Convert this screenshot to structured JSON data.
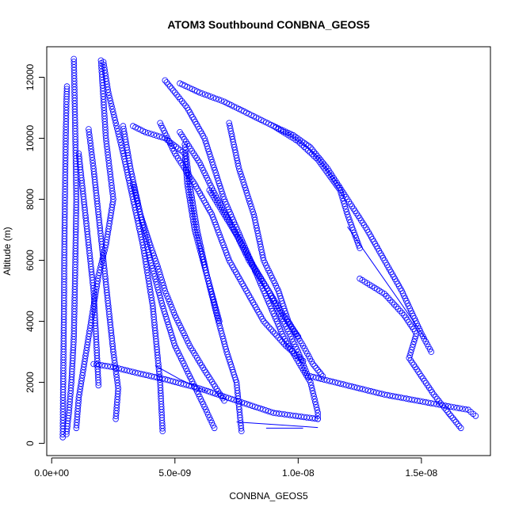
{
  "chart_data": {
    "type": "scatter",
    "title": "ATOM3 Southbound CONBNA_GEOS5",
    "xlabel": "CONBNA_GEOS5",
    "ylabel": "Altitude (m)",
    "xlim": [
      -2e-10,
      1.78e-08
    ],
    "ylim": [
      -400,
      13000
    ],
    "x_ticks": [
      0,
      5e-09,
      1e-08,
      1.5e-08
    ],
    "x_tick_labels": [
      "0.0e+00",
      "5.0e-09",
      "1.0e-08",
      "1.5e-08"
    ],
    "y_ticks": [
      0,
      2000,
      4000,
      6000,
      8000,
      10000,
      12000
    ],
    "y_tick_labels": [
      "0",
      "2000",
      "4000",
      "6000",
      "8000",
      "10000",
      "12000"
    ],
    "grid": false,
    "marker": "open-circle",
    "series_color": "#0000ff",
    "series": [
      {
        "x": [
          4.5e-10,
          4.6e-10,
          4.8e-10,
          5e-10,
          5.1e-10,
          5.3e-10,
          5.5e-10,
          5.7e-10,
          6e-10,
          6.2e-10
        ],
        "y": [
          200,
          1500,
          3000,
          4500,
          6000,
          7500,
          8800,
          10000,
          11200,
          11700
        ]
      },
      {
        "x": [
          6e-10,
          7e-10,
          8e-10,
          9e-10,
          9.5e-10,
          1e-09,
          9.5e-10,
          9e-10
        ],
        "y": [
          300,
          1000,
          2000,
          3500,
          5500,
          8000,
          10500,
          12600
        ]
      },
      {
        "x": [
          1e-09,
          1.1e-09,
          1.3e-09,
          1.5e-09,
          1.7e-09,
          1.9e-09,
          2.2e-09,
          2.5e-09,
          2.2e-09,
          2e-09
        ],
        "y": [
          500,
          1500,
          2500,
          3500,
          4500,
          5500,
          6500,
          8000,
          10000,
          12550
        ]
      },
      {
        "x": [
          2.1e-09,
          2.3e-09,
          2.6e-09,
          2.9e-09,
          3.3e-09,
          3.7e-09,
          4.1e-09,
          4.4e-09,
          4.5e-09
        ],
        "y": [
          12500,
          11500,
          10500,
          9500,
          8000,
          6500,
          4500,
          2000,
          400
        ]
      },
      {
        "x": [
          4.6e-09,
          5e-09,
          5.5e-09,
          6.2e-09,
          7e-09,
          7.8e-09,
          8.6e-09,
          9.4e-09,
          1.05e-08,
          1.08e-08,
          1.08e-08
        ],
        "y": [
          11900,
          11500,
          11000,
          10000,
          8000,
          6500,
          5000,
          3500,
          2000,
          1000,
          800
        ]
      },
      {
        "x": [
          5.2e-09,
          6e-09,
          7e-09,
          8e-09,
          9e-09,
          1e-08,
          1.08e-08,
          1.17e-08,
          1.2e-08,
          1.25e-08
        ],
        "y": [
          11800,
          11500,
          11200,
          10800,
          10400,
          9900,
          9300,
          8300,
          7500,
          6400
        ]
      },
      {
        "x": [
          4.4e-09,
          5e-09,
          5.8e-09,
          6.5e-09,
          7.2e-09,
          7.9e-09,
          8.6e-09,
          9.5e-09,
          1.02e-08
        ],
        "y": [
          10500,
          9500,
          8500,
          7500,
          6000,
          5000,
          4000,
          3200,
          2700
        ]
      },
      {
        "x": [
          7.2e-09,
          7.6e-09,
          8.2e-09,
          8.6e-09,
          9.2e-09,
          9.6e-09,
          1.02e-08,
          1.06e-08,
          1.1e-08
        ],
        "y": [
          10500,
          9000,
          7500,
          6000,
          5000,
          4000,
          3200,
          2600,
          2200
        ]
      },
      {
        "x": [
          5.2e-09,
          6e-09,
          6.6e-09,
          7.4e-09,
          8e-09,
          8.8e-09,
          9.4e-09,
          1e-08
        ],
        "y": [
          10200,
          9200,
          8200,
          7000,
          6000,
          5000,
          4200,
          3500
        ]
      },
      {
        "x": [
          9e-09,
          9.8e-09,
          1.05e-08,
          1.12e-08,
          1.2e-08,
          1.28e-08,
          1.35e-08,
          1.42e-08,
          1.5e-08,
          1.54e-08
        ],
        "y": [
          10400,
          10100,
          9700,
          9000,
          8000,
          7000,
          6000,
          5000,
          3600,
          3000
        ]
      },
      {
        "x": [
          1.25e-08,
          1.35e-08,
          1.43e-08,
          1.48e-08,
          1.45e-08,
          1.5e-08,
          1.55e-08,
          1.6e-08,
          1.64e-08,
          1.66e-08
        ],
        "y": [
          5400,
          4900,
          4200,
          3600,
          2800,
          2200,
          1600,
          1100,
          700,
          500
        ]
      },
      {
        "x": [
          1.7e-09,
          2.5e-09,
          3.5e-09,
          4.6e-09,
          6e-09,
          7.5e-09,
          9e-09,
          1.08e-08
        ],
        "y": [
          2600,
          2500,
          2300,
          2100,
          1800,
          1400,
          1000,
          800
        ]
      },
      {
        "x": [
          1.05e-08,
          1.15e-08,
          1.25e-08,
          1.35e-08,
          1.45e-08,
          1.55e-08,
          1.62e-08,
          1.69e-08,
          1.72e-08
        ],
        "y": [
          2200,
          2000,
          1800,
          1600,
          1450,
          1300,
          1200,
          1100,
          900
        ]
      },
      {
        "x": [
          2.9e-09,
          3.2e-09,
          3.6e-09,
          4e-09,
          4.5e-09,
          5e-09,
          5.6e-09,
          6.2e-09,
          6.6e-09
        ],
        "y": [
          10400,
          9000,
          7500,
          6000,
          4500,
          3200,
          2200,
          1200,
          500
        ]
      },
      {
        "x": [
          1.5e-09,
          1.7e-09,
          1.9e-09,
          2.1e-09,
          2.3e-09,
          2.5e-09,
          2.7e-09,
          2.6e-09
        ],
        "y": [
          10300,
          9000,
          7500,
          6000,
          4500,
          3000,
          1800,
          800
        ]
      },
      {
        "x": [
          1.1e-09,
          1.3e-09,
          1.5e-09,
          1.7e-09,
          1.8e-09,
          1.9e-09
        ],
        "y": [
          9500,
          8000,
          6500,
          5000,
          3500,
          1900
        ]
      },
      {
        "x": [
          5.4e-09,
          5.6e-09,
          5.9e-09,
          6.3e-09,
          6.7e-09,
          7.1e-09,
          7.5e-09,
          7.7e-09
        ],
        "y": [
          9800,
          8500,
          7000,
          5500,
          4200,
          3000,
          2000,
          400
        ]
      },
      {
        "x": [
          3.3e-09,
          3.6e-09,
          4e-09,
          4.3e-09,
          4.6e-09,
          5e-09,
          5.6e-09,
          6.2e-09,
          7e-09
        ],
        "y": [
          8500,
          7500,
          6500,
          5800,
          5000,
          4200,
          3200,
          2400,
          1400
        ]
      },
      {
        "x": [
          6.4e-09,
          7e-09,
          7.6e-09,
          8.2e-09,
          8.8e-09,
          9.4e-09,
          1e-08,
          1.04e-08
        ],
        "y": [
          8300,
          7500,
          6700,
          5800,
          5000,
          4000,
          3000,
          2200
        ]
      },
      {
        "x": [
          3.3e-09,
          3.8e-09,
          4.6e-09,
          5.4e-09,
          5.5e-09,
          5.8e-09,
          6.3e-09,
          6.8e-09
        ],
        "y": [
          10400,
          10200,
          10000,
          9500,
          8500,
          7000,
          5500,
          4000
        ]
      }
    ],
    "lines": [
      {
        "x": [
          1.2e-08,
          1.52e-08
        ],
        "y": [
          7100,
          3400
        ]
      },
      {
        "x": [
          4.2e-09,
          5.2e-09,
          6.3e-09
        ],
        "y": [
          2550,
          2100,
          1700
        ]
      },
      {
        "x": [
          8.7e-09,
          1.02e-08
        ],
        "y": [
          500,
          500
        ]
      },
      {
        "x": [
          7.5e-09,
          9e-09,
          1.08e-08
        ],
        "y": [
          700,
          620,
          520
        ]
      }
    ]
  }
}
